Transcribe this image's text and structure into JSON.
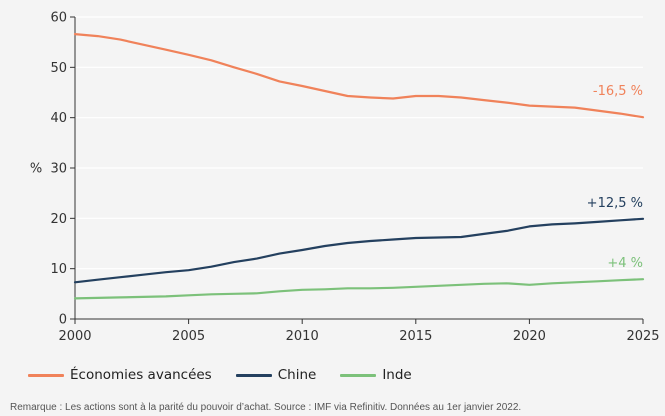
{
  "chart_data": {
    "type": "line",
    "ylabel": "%",
    "xlim": [
      2000,
      2025
    ],
    "ylim": [
      0,
      60
    ],
    "x_ticks": [
      2000,
      2005,
      2010,
      2015,
      2020,
      2025
    ],
    "y_ticks": [
      0,
      10,
      20,
      30,
      40,
      50,
      60
    ],
    "grid": "horizontal",
    "legend_position": "bottom-left",
    "x": [
      2000,
      2001,
      2002,
      2003,
      2004,
      2005,
      2006,
      2007,
      2008,
      2009,
      2010,
      2011,
      2012,
      2013,
      2014,
      2015,
      2016,
      2017,
      2018,
      2019,
      2020,
      2021,
      2022,
      2023,
      2024,
      2025
    ],
    "series": [
      {
        "name": "Économies avancées",
        "color": "#f0825a",
        "end_label": "-16,5 %",
        "values": [
          56.6,
          56.2,
          55.5,
          54.5,
          53.5,
          52.5,
          51.4,
          50.0,
          48.7,
          47.2,
          46.3,
          45.3,
          44.3,
          44.0,
          43.8,
          44.3,
          44.3,
          44.0,
          43.5,
          43.0,
          42.4,
          42.2,
          42.0,
          41.4,
          40.8,
          40.1
        ]
      },
      {
        "name": "Chine",
        "color": "#24405f",
        "end_label": "+12,5 %",
        "values": [
          7.3,
          7.8,
          8.3,
          8.8,
          9.3,
          9.7,
          10.4,
          11.3,
          12.0,
          13.0,
          13.7,
          14.5,
          15.1,
          15.5,
          15.8,
          16.1,
          16.2,
          16.3,
          16.9,
          17.5,
          18.4,
          18.8,
          19.0,
          19.3,
          19.6,
          19.9
        ]
      },
      {
        "name": "Inde",
        "color": "#7cc17a",
        "end_label": "+4 %",
        "values": [
          4.1,
          4.2,
          4.3,
          4.4,
          4.5,
          4.7,
          4.9,
          5.0,
          5.1,
          5.5,
          5.8,
          5.9,
          6.1,
          6.1,
          6.2,
          6.4,
          6.6,
          6.8,
          7.0,
          7.1,
          6.8,
          7.1,
          7.3,
          7.5,
          7.7,
          7.9
        ]
      }
    ]
  },
  "footnote": "Remarque : Les actions sont à la parité du pouvoir d’achat. Source : IMF via Refinitiv. Données au 1er janvier 2022."
}
